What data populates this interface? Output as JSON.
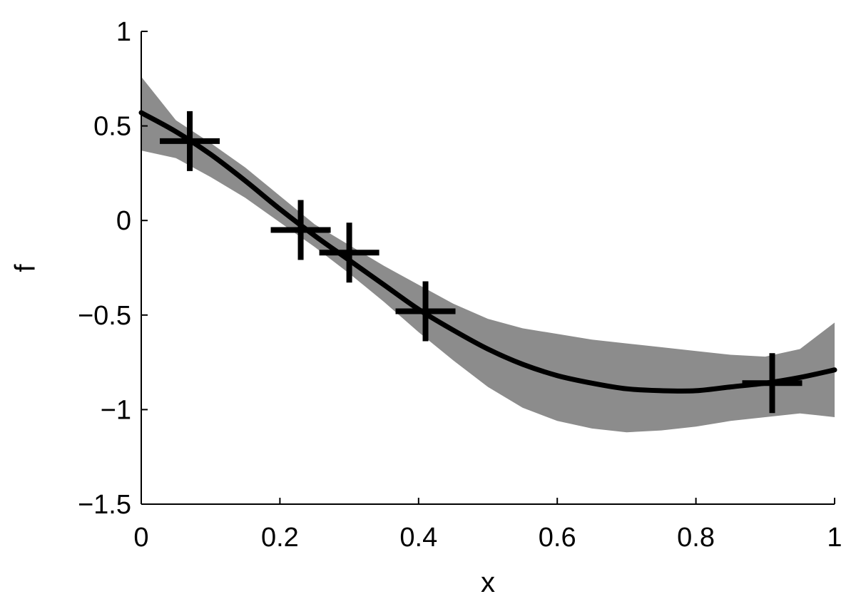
{
  "chart_data": {
    "type": "line",
    "xlabel": "x",
    "ylabel": "f",
    "xlim": [
      0,
      1
    ],
    "ylim": [
      -1.5,
      1
    ],
    "x_ticks": [
      0,
      0.2,
      0.4,
      0.6,
      0.8,
      1
    ],
    "x_tick_labels": [
      "0",
      "0.2",
      "0.4",
      "0.6",
      "0.8",
      "1"
    ],
    "y_ticks": [
      1,
      0.5,
      0,
      -0.5,
      -1,
      -1.5
    ],
    "y_tick_labels": [
      "1",
      "0.5",
      "0",
      "−0.5",
      "−1",
      "−1.5"
    ],
    "grid": false,
    "colors": {
      "mean": "#000000",
      "band": "#8c8c8c",
      "markers": "#000000"
    },
    "series": [
      {
        "kind": "mean",
        "x": [
          0,
          0.05,
          0.1,
          0.15,
          0.2,
          0.25,
          0.3,
          0.35,
          0.4,
          0.45,
          0.5,
          0.55,
          0.6,
          0.65,
          0.7,
          0.75,
          0.8,
          0.85,
          0.9,
          0.95,
          1.0
        ],
        "y": [
          0.57,
          0.47,
          0.35,
          0.21,
          0.06,
          -0.08,
          -0.21,
          -0.34,
          -0.47,
          -0.58,
          -0.68,
          -0.76,
          -0.82,
          -0.86,
          -0.89,
          -0.9,
          -0.9,
          -0.88,
          -0.86,
          -0.83,
          -0.79
        ]
      },
      {
        "kind": "band_upper",
        "x": [
          0,
          0.05,
          0.1,
          0.15,
          0.2,
          0.25,
          0.3,
          0.35,
          0.4,
          0.45,
          0.5,
          0.55,
          0.6,
          0.65,
          0.7,
          0.75,
          0.8,
          0.85,
          0.9,
          0.95,
          1.0
        ],
        "y": [
          0.76,
          0.53,
          0.41,
          0.28,
          0.13,
          -0.02,
          -0.13,
          -0.24,
          -0.34,
          -0.44,
          -0.52,
          -0.57,
          -0.6,
          -0.63,
          -0.65,
          -0.67,
          -0.69,
          -0.71,
          -0.72,
          -0.68,
          -0.54
        ]
      },
      {
        "kind": "band_lower",
        "x": [
          0,
          0.05,
          0.1,
          0.15,
          0.2,
          0.25,
          0.3,
          0.35,
          0.4,
          0.45,
          0.5,
          0.55,
          0.6,
          0.65,
          0.7,
          0.75,
          0.8,
          0.85,
          0.9,
          0.95,
          1.0
        ],
        "y": [
          0.37,
          0.33,
          0.23,
          0.12,
          -0.01,
          -0.14,
          -0.28,
          -0.43,
          -0.59,
          -0.74,
          -0.88,
          -0.99,
          -1.06,
          -1.1,
          -1.12,
          -1.11,
          -1.09,
          -1.06,
          -1.04,
          -1.02,
          -1.04
        ]
      },
      {
        "kind": "observations",
        "x": [
          0.07,
          0.23,
          0.3,
          0.41,
          0.91
        ],
        "y": [
          0.42,
          -0.05,
          -0.17,
          -0.48,
          -0.86
        ]
      }
    ]
  }
}
